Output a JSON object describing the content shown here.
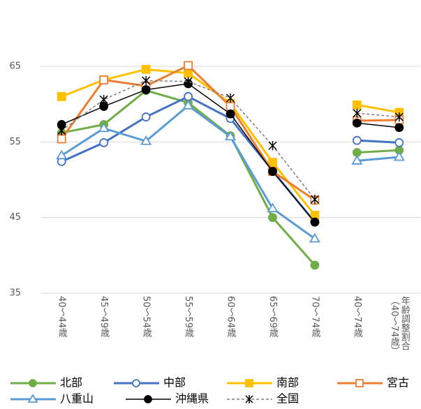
{
  "chart_data": {
    "type": "line",
    "categories": [
      "40～44歳",
      "45～49歳",
      "50～54歳",
      "55～59歳",
      "60～64歳",
      "65～69歳",
      "70～74歳",
      "40～74歳",
      "年齢調整割合（40～74歳）"
    ],
    "line_groups": [
      7,
      2
    ],
    "ylim": [
      35,
      65
    ],
    "yticks": [
      35,
      45,
      55,
      65
    ],
    "grid": true,
    "series": [
      {
        "name": "北部",
        "color": "#70ad47",
        "marker": "circle",
        "filled": true,
        "width": 3,
        "dash": false,
        "values": [
          56.2,
          57.3,
          61.8,
          60.2,
          55.8,
          45.0,
          38.7,
          53.6,
          53.9
        ]
      },
      {
        "name": "中部",
        "color": "#4472c4",
        "marker": "circle",
        "filled": false,
        "width": 3,
        "dash": false,
        "values": [
          52.4,
          54.9,
          58.3,
          61.0,
          58.1,
          51.2,
          44.4,
          55.2,
          54.9
        ]
      },
      {
        "name": "南部",
        "color": "#ffc000",
        "marker": "square",
        "filled": true,
        "width": 3,
        "dash": false,
        "values": [
          61.0,
          63.2,
          64.6,
          64.1,
          60.1,
          52.3,
          45.3,
          59.9,
          58.9
        ]
      },
      {
        "name": "宮古",
        "color": "#ed7d31",
        "marker": "square",
        "filled": false,
        "width": 3,
        "dash": false,
        "values": [
          55.4,
          63.2,
          62.4,
          65.1,
          59.7,
          51.1,
          47.3,
          57.8,
          57.9
        ]
      },
      {
        "name": "八重山",
        "color": "#5b9bd5",
        "marker": "triangle",
        "filled": false,
        "width": 3,
        "dash": false,
        "values": [
          53.2,
          56.8,
          55.1,
          59.8,
          55.7,
          46.2,
          42.2,
          52.5,
          53.0
        ]
      },
      {
        "name": "沖縄県",
        "color": "#000000",
        "marker": "circle",
        "filled": true,
        "width": 1.5,
        "dash": false,
        "values": [
          57.3,
          59.7,
          61.9,
          62.7,
          58.7,
          51.1,
          44.4,
          57.5,
          56.9
        ]
      },
      {
        "name": "全国",
        "color": "#7f7f7f",
        "marker": "asterisk",
        "filled": true,
        "width": 1.5,
        "dash": true,
        "values": [
          56.5,
          60.6,
          63.1,
          63.0,
          60.8,
          54.5,
          47.4,
          58.8,
          58.3
        ]
      }
    ]
  }
}
